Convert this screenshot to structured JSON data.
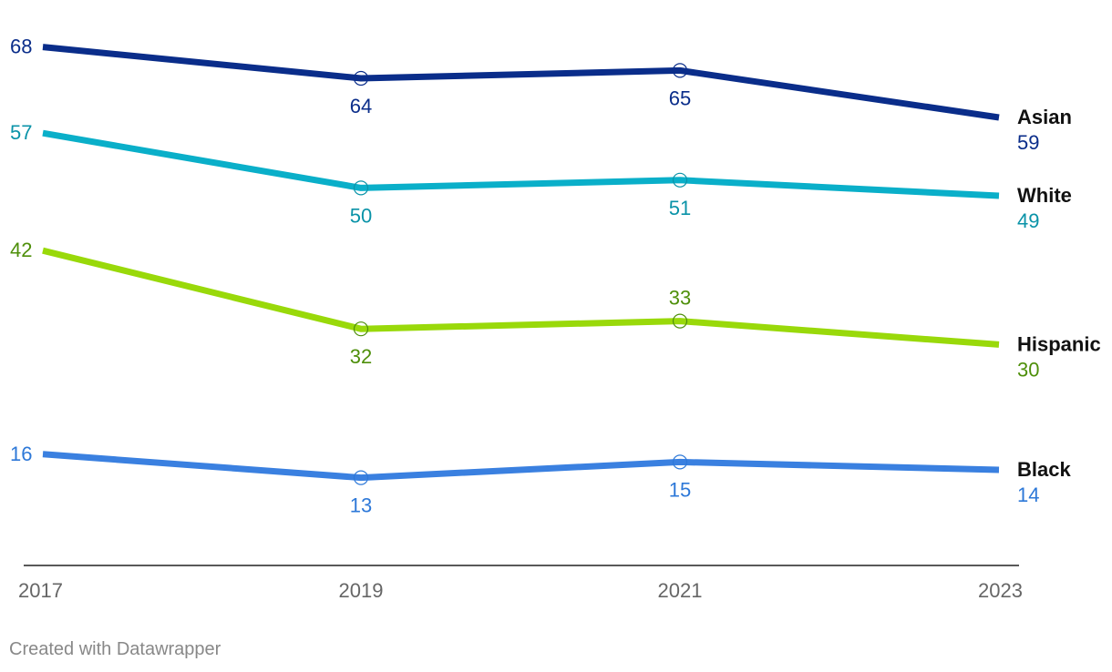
{
  "chart_data": {
    "type": "line",
    "x": [
      "2017",
      "2019",
      "2021",
      "2023"
    ],
    "ylim": [
      0,
      72
    ],
    "series": [
      {
        "name": "Asian",
        "color": "#0a2d8a",
        "values": [
          68,
          64,
          65,
          59
        ]
      },
      {
        "name": "White",
        "color": "#0aafc9",
        "label_color": "#0a93a8",
        "values": [
          57,
          50,
          51,
          49
        ]
      },
      {
        "name": "Hispanic",
        "color": "#99d90a",
        "label_color": "#4e8f0a",
        "values": [
          42,
          32,
          33,
          30
        ]
      },
      {
        "name": "Black",
        "color": "#3a80e0",
        "label_color": "#2d78d8",
        "values": [
          16,
          13,
          15,
          14
        ]
      }
    ]
  },
  "footer": {
    "credit": "Created with Datawrapper"
  }
}
